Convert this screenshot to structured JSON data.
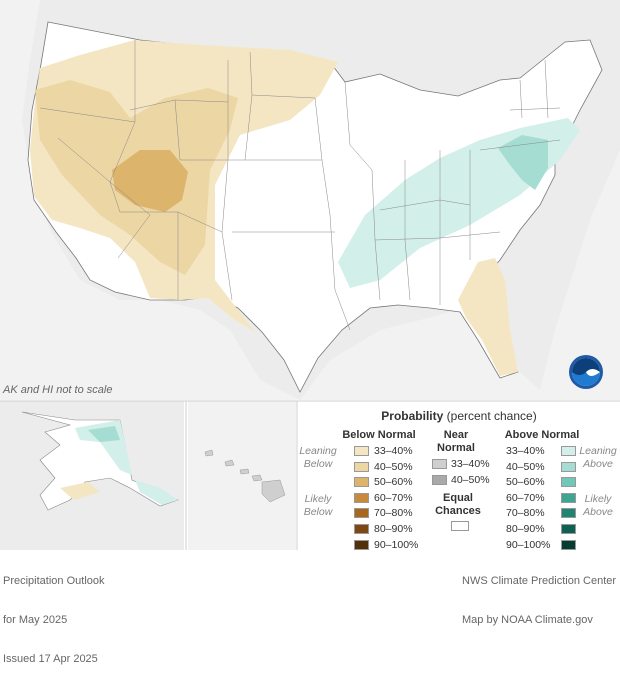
{
  "map": {
    "note": "AK and HI not to scale",
    "logo_text": "NOAA"
  },
  "legend": {
    "title_bold": "Probability",
    "title_rest": " (percent chance)",
    "below_header": "Below Normal",
    "near_header_1": "Near",
    "near_header_2": "Normal",
    "above_header": "Above Normal",
    "leaning_below_1": "Leaning",
    "leaning_below_2": "Below",
    "likely_below_1": "Likely",
    "likely_below_2": "Below",
    "leaning_above_1": "Leaning",
    "leaning_above_2": "Above",
    "likely_above_1": "Likely",
    "likely_above_2": "Above",
    "equal_1": "Equal",
    "equal_2": "Chances",
    "below": [
      {
        "label": "33–40%",
        "color": "#f5e6c3"
      },
      {
        "label": "40–50%",
        "color": "#ecd6a4"
      },
      {
        "label": "50–60%",
        "color": "#ddb46c"
      },
      {
        "label": "60–70%",
        "color": "#c98b3b"
      },
      {
        "label": "70–80%",
        "color": "#a9661d"
      },
      {
        "label": "80–90%",
        "color": "#7d4812"
      },
      {
        "label": "90–100%",
        "color": "#52300a"
      }
    ],
    "near": [
      {
        "label": "33–40%",
        "color": "#cfcfcf"
      },
      {
        "label": "40–50%",
        "color": "#a9a9a9"
      }
    ],
    "above": [
      {
        "label": "33–40%",
        "color": "#d2efe9"
      },
      {
        "label": "40–50%",
        "color": "#a5ddd2"
      },
      {
        "label": "50–60%",
        "color": "#72c8b8"
      },
      {
        "label": "60–70%",
        "color": "#3fa593"
      },
      {
        "label": "70–80%",
        "color": "#1f8472"
      },
      {
        "label": "80–90%",
        "color": "#0e6152"
      },
      {
        "label": "90–100%",
        "color": "#053d33"
      }
    ]
  },
  "footer": {
    "left_1": "Precipitation Outlook",
    "left_2": "for May 2025",
    "left_3": "Issued 17 Apr 2025",
    "right_1": "NWS Climate Prediction Center",
    "right_2": "Map by NOAA Climate.gov"
  }
}
